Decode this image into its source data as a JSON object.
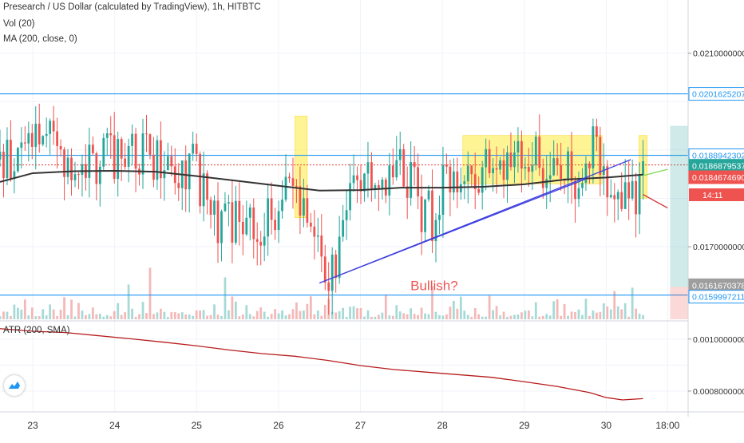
{
  "header": {
    "title": "Presearch / US Dollar (calculated by TradingView), 1h, HITBTC",
    "line2": "Vol (20)",
    "line3": "MA (200, close, 0)"
  },
  "subpanel": {
    "title": "ATR (200, SMA)"
  },
  "icons": {
    "logo": "tradingview-logo-icon"
  },
  "colors": {
    "up": "#26a69a",
    "down": "#ef5350",
    "ma": "#333333",
    "hline": "#2196f3",
    "zone": "#ffeb3b",
    "atr": "#b71c1c"
  },
  "chart_data": [
    {
      "type": "candlestick",
      "title": "",
      "x_axis": {
        "ticks": [
          "23",
          "24",
          "25",
          "26",
          "27",
          "28",
          "29",
          "30",
          "18:00"
        ],
        "range": [
          22.6,
          31.0
        ]
      },
      "y_axis": {
        "ticks": [
          "0.0210000000",
          "0.0170000000"
        ],
        "range": [
          0.0155,
          0.0221
        ],
        "position": "right"
      },
      "price_labels": [
        {
          "value": "0.0201625207",
          "price": 0.02016
        },
        {
          "value": "0.0188942302",
          "price": 0.01889
        },
        {
          "value": "0.0186879537",
          "price": 0.01869
        },
        {
          "value": "0.0184674690",
          "price": 0.01847
        },
        {
          "value": "0.0161670378",
          "price": 0.01617
        },
        {
          "value": "0.0159997211",
          "price": 0.016
        }
      ],
      "countdown_label": "14:11",
      "horizontal_lines": [
        0.02016,
        0.01889,
        0.016
      ],
      "last_price_line": 0.01869,
      "trend_lines": [
        {
          "color": "blue",
          "from": [
            26.5,
            0.01625
          ],
          "to": [
            29.75,
            0.0184
          ]
        },
        {
          "color": "blue",
          "from": [
            26.5,
            0.01625
          ],
          "to": [
            30.3,
            0.0188
          ]
        },
        {
          "color": "green",
          "from": [
            30.45,
            0.01847
          ],
          "to": [
            30.75,
            0.0186
          ]
        },
        {
          "color": "red",
          "from": [
            30.45,
            0.01808
          ],
          "to": [
            30.75,
            0.0178
          ]
        }
      ],
      "highlight_zones": [
        {
          "x": [
            26.2,
            26.35
          ],
          "y": [
            0.0176,
            0.0197
          ]
        },
        {
          "x": [
            28.25,
            29.95
          ],
          "y": [
            0.0183,
            0.0193
          ]
        },
        {
          "x": [
            30.4,
            30.5
          ],
          "y": [
            0.018,
            0.0193
          ]
        }
      ],
      "annotation": {
        "text": "Bullish?",
        "x": 28.0,
        "y": 0.0162
      },
      "moving_average": {
        "name": "MA (200, close, 0)",
        "x": [
          22.6,
          23.0,
          23.5,
          24.0,
          24.5,
          25.0,
          25.5,
          26.0,
          26.5,
          27.0,
          27.5,
          28.0,
          28.5,
          29.0,
          29.5,
          30.0,
          30.45
        ],
        "y": [
          0.01834,
          0.01852,
          0.01856,
          0.01857,
          0.01855,
          0.01846,
          0.01836,
          0.01826,
          0.01816,
          0.01817,
          0.01822,
          0.01822,
          0.01824,
          0.01829,
          0.01839,
          0.01843,
          0.01849
        ]
      },
      "price_path": {
        "x": [
          22.6,
          22.8,
          23.0,
          23.25,
          23.5,
          23.75,
          24.0,
          24.2,
          24.4,
          24.6,
          24.8,
          24.95,
          25.05,
          25.25,
          25.5,
          25.75,
          26.0,
          26.2,
          26.35,
          26.5,
          26.6,
          26.75,
          26.85,
          26.95,
          27.1,
          27.3,
          27.5,
          27.6,
          27.75,
          27.9,
          28.0,
          28.25,
          28.5,
          28.7,
          28.9,
          29.1,
          29.3,
          29.5,
          29.7,
          29.85,
          30.0,
          30.1,
          30.2,
          30.3,
          30.35,
          30.45
        ],
        "y": [
          0.0188,
          0.0186,
          0.0194,
          0.019,
          0.0189,
          0.0187,
          0.0189,
          0.0192,
          0.0188,
          0.019,
          0.0186,
          0.0188,
          0.0182,
          0.0173,
          0.0177,
          0.0174,
          0.0179,
          0.0182,
          0.0178,
          0.0168,
          0.0163,
          0.0171,
          0.0176,
          0.0186,
          0.0184,
          0.0186,
          0.0187,
          0.0183,
          0.0178,
          0.0176,
          0.0182,
          0.0183,
          0.0187,
          0.0189,
          0.0186,
          0.0189,
          0.0185,
          0.0184,
          0.0186,
          0.019,
          0.0184,
          0.0183,
          0.0182,
          0.0179,
          0.018,
          0.01869
        ]
      }
    },
    {
      "type": "line",
      "title": "ATR (200, SMA)",
      "y_axis": {
        "ticks": [
          "0.0010000000",
          "0.0008000000"
        ],
        "range": [
          0.00072,
          0.00107
        ],
        "position": "right"
      },
      "series": [
        {
          "x": [
            22.6,
            23.0,
            23.4,
            23.8,
            24.2,
            24.6,
            25.0,
            25.4,
            25.8,
            26.2,
            26.6,
            27.0,
            27.4,
            27.8,
            28.2,
            28.6,
            29.0,
            29.4,
            29.8,
            30.0,
            30.2,
            30.45
          ],
          "y": [
            0.00104,
            0.00103,
            0.001025,
            0.001013,
            0.001001,
            0.000988,
            0.000974,
            0.000958,
            0.000944,
            0.000934,
            0.000918,
            0.000898,
            0.000883,
            0.000873,
            0.000863,
            0.000853,
            0.000836,
            0.000818,
            0.000794,
            0.000775,
            0.000766,
            0.000771
          ]
        }
      ]
    }
  ]
}
